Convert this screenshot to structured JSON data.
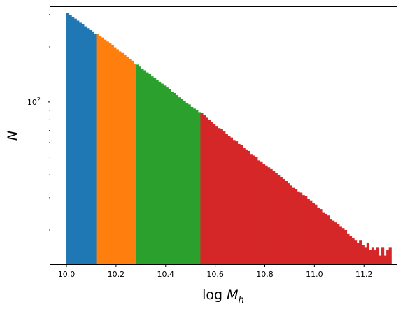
{
  "chart_data": {
    "type": "bar",
    "title": "",
    "xlabel_prefix": "log ",
    "xlabel_var": "M",
    "xlabel_sub": "h",
    "ylabel": "N",
    "y_scale": "log",
    "grid": false,
    "legend": "none",
    "xlim": [
      9.935,
      11.332
    ],
    "ylim": [
      13,
      330
    ],
    "x_ticks": [
      10.0,
      10.2,
      10.4,
      10.6,
      10.8,
      11.0,
      11.2
    ],
    "x_tick_labels": [
      "10.0",
      "10.2",
      "10.4",
      "10.6",
      "10.8",
      "11.0",
      "11.2"
    ],
    "y_major_ticks": [
      100
    ],
    "y_minor_ticks": [
      20,
      30,
      40,
      50,
      60,
      70,
      80,
      90,
      200,
      300
    ],
    "y_tick_label_base": "10",
    "y_tick_label_exp": "2",
    "bin_width": 0.01,
    "series": [
      {
        "color": "#1f77b4",
        "x_start": 10.0,
        "values": [
          305,
          298,
          291,
          285,
          278,
          271,
          265,
          259,
          253,
          247,
          241,
          235
        ]
      },
      {
        "color": "#ff7f0e",
        "x_start": 10.12,
        "values": [
          236,
          230,
          225,
          219,
          214,
          209,
          204,
          199,
          194,
          189,
          185,
          181,
          176,
          171,
          168,
          162
        ]
      },
      {
        "color": "#2ca02c",
        "x_start": 10.28,
        "values": [
          160,
          156,
          152,
          149,
          145,
          142,
          138,
          135,
          132,
          129,
          126,
          123,
          120,
          117,
          114,
          112,
          109,
          106,
          104,
          101,
          99,
          97,
          94,
          92,
          90,
          88
        ]
      },
      {
        "color": "#d62728",
        "x_start": 10.54,
        "values": [
          87,
          85,
          82,
          80,
          78,
          76,
          74,
          72,
          71,
          69,
          67,
          65,
          64,
          62,
          61,
          59,
          58,
          56,
          55,
          54,
          52,
          51,
          50,
          48,
          47,
          46,
          45,
          44,
          43,
          42,
          41,
          40,
          39,
          38,
          37,
          36,
          35,
          34,
          33.5,
          32.5,
          32,
          31,
          30.5,
          29.5,
          29,
          28,
          27.5,
          26.5,
          26,
          25,
          24.5,
          24,
          23,
          22.5,
          22,
          21.5,
          21,
          20.5,
          20,
          19,
          18.5,
          18,
          17.5,
          17,
          17.5,
          16.5,
          16,
          17,
          15.5,
          16,
          15.5,
          16,
          14.5,
          16,
          14.5,
          15.5,
          16
        ]
      }
    ]
  }
}
